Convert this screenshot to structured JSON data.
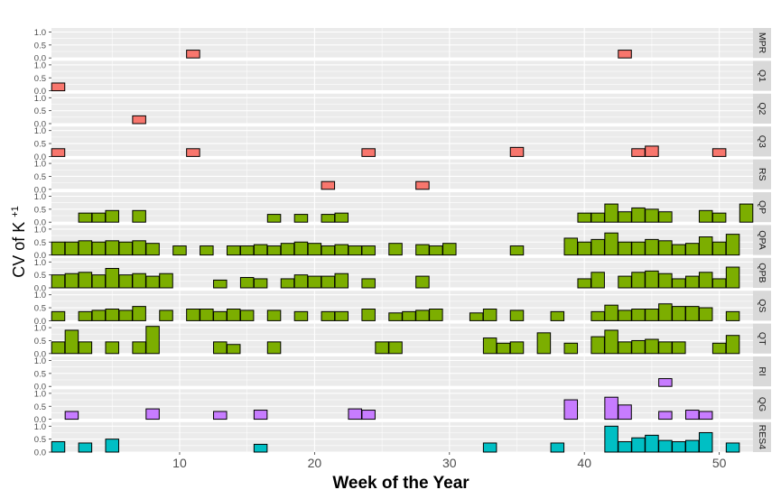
{
  "chart_data": {
    "type": "bar",
    "xlabel": "Week of the Year",
    "ylabel_main": "CV of K",
    "ylabel_sup": "+1",
    "xlim": [
      0.5,
      52.5
    ],
    "x_ticks": [
      10,
      20,
      30,
      40,
      50
    ],
    "ylim": [
      0,
      1
    ],
    "y_ticks": [
      "0.0",
      "0.5",
      "1.0"
    ],
    "grid": true,
    "panel_background": "#ebebeb",
    "grid_color": "#ffffff",
    "strip_background": "#d9d9d9",
    "bar_outline": "#000000",
    "panels": [
      {
        "label": "MPR",
        "fill": "#f8766d",
        "points": [
          [
            11,
            0.3
          ],
          [
            43,
            0.3
          ]
        ]
      },
      {
        "label": "Q1",
        "fill": "#f8766d",
        "points": [
          [
            1,
            0.3
          ]
        ]
      },
      {
        "label": "Q2",
        "fill": "#f8766d",
        "points": [
          [
            7,
            0.3
          ]
        ]
      },
      {
        "label": "Q3",
        "fill": "#f8766d",
        "points": [
          [
            1,
            0.3
          ],
          [
            11,
            0.3
          ],
          [
            24,
            0.3
          ],
          [
            35,
            0.35
          ],
          [
            44,
            0.3
          ],
          [
            45,
            0.4
          ],
          [
            50,
            0.3
          ]
        ]
      },
      {
        "label": "RS",
        "fill": "#f8766d",
        "points": [
          [
            21,
            0.3
          ],
          [
            28,
            0.3
          ]
        ]
      },
      {
        "label": "QP",
        "fill": "#7cae00",
        "points": [
          [
            3,
            0.35
          ],
          [
            4,
            0.35
          ],
          [
            5,
            0.45
          ],
          [
            7,
            0.45
          ],
          [
            17,
            0.3
          ],
          [
            19,
            0.3
          ],
          [
            21,
            0.3
          ],
          [
            22,
            0.35
          ],
          [
            40,
            0.35
          ],
          [
            41,
            0.35
          ],
          [
            42,
            0.7
          ],
          [
            43,
            0.4
          ],
          [
            44,
            0.55
          ],
          [
            45,
            0.5
          ],
          [
            46,
            0.4
          ],
          [
            49,
            0.45
          ],
          [
            50,
            0.35
          ],
          [
            52,
            0.7
          ]
        ]
      },
      {
        "label": "QPA",
        "fill": "#7cae00",
        "points": [
          [
            1,
            0.5
          ],
          [
            2,
            0.5
          ],
          [
            3,
            0.55
          ],
          [
            4,
            0.5
          ],
          [
            5,
            0.55
          ],
          [
            6,
            0.5
          ],
          [
            7,
            0.55
          ],
          [
            8,
            0.45
          ],
          [
            10,
            0.35
          ],
          [
            12,
            0.35
          ],
          [
            14,
            0.35
          ],
          [
            15,
            0.35
          ],
          [
            16,
            0.4
          ],
          [
            17,
            0.35
          ],
          [
            18,
            0.45
          ],
          [
            19,
            0.5
          ],
          [
            20,
            0.45
          ],
          [
            21,
            0.35
          ],
          [
            22,
            0.4
          ],
          [
            23,
            0.35
          ],
          [
            24,
            0.35
          ],
          [
            26,
            0.45
          ],
          [
            28,
            0.4
          ],
          [
            29,
            0.35
          ],
          [
            30,
            0.45
          ],
          [
            35,
            0.35
          ],
          [
            39,
            0.65
          ],
          [
            40,
            0.5
          ],
          [
            41,
            0.6
          ],
          [
            42,
            0.85
          ],
          [
            43,
            0.5
          ],
          [
            44,
            0.5
          ],
          [
            45,
            0.6
          ],
          [
            46,
            0.55
          ],
          [
            47,
            0.4
          ],
          [
            48,
            0.45
          ],
          [
            49,
            0.7
          ],
          [
            50,
            0.5
          ],
          [
            51,
            0.8
          ]
        ]
      },
      {
        "label": "QPB",
        "fill": "#7cae00",
        "points": [
          [
            1,
            0.5
          ],
          [
            2,
            0.55
          ],
          [
            3,
            0.6
          ],
          [
            4,
            0.5
          ],
          [
            5,
            0.75
          ],
          [
            6,
            0.5
          ],
          [
            7,
            0.55
          ],
          [
            8,
            0.45
          ],
          [
            9,
            0.55
          ],
          [
            13,
            0.3
          ],
          [
            15,
            0.4
          ],
          [
            16,
            0.35
          ],
          [
            18,
            0.35
          ],
          [
            19,
            0.5
          ],
          [
            20,
            0.45
          ],
          [
            21,
            0.45
          ],
          [
            22,
            0.55
          ],
          [
            24,
            0.35
          ],
          [
            28,
            0.45
          ],
          [
            40,
            0.35
          ],
          [
            41,
            0.6
          ],
          [
            43,
            0.45
          ],
          [
            44,
            0.6
          ],
          [
            45,
            0.65
          ],
          [
            46,
            0.55
          ],
          [
            47,
            0.35
          ],
          [
            48,
            0.45
          ],
          [
            49,
            0.6
          ],
          [
            50,
            0.35
          ],
          [
            51,
            0.8
          ]
        ]
      },
      {
        "label": "QS",
        "fill": "#7cae00",
        "points": [
          [
            1,
            0.35
          ],
          [
            3,
            0.35
          ],
          [
            4,
            0.4
          ],
          [
            5,
            0.45
          ],
          [
            6,
            0.4
          ],
          [
            7,
            0.55
          ],
          [
            9,
            0.4
          ],
          [
            11,
            0.45
          ],
          [
            12,
            0.45
          ],
          [
            13,
            0.35
          ],
          [
            14,
            0.45
          ],
          [
            15,
            0.4
          ],
          [
            17,
            0.4
          ],
          [
            19,
            0.35
          ],
          [
            21,
            0.35
          ],
          [
            22,
            0.35
          ],
          [
            24,
            0.45
          ],
          [
            26,
            0.3
          ],
          [
            27,
            0.35
          ],
          [
            28,
            0.4
          ],
          [
            29,
            0.45
          ],
          [
            32,
            0.3
          ],
          [
            33,
            0.45
          ],
          [
            35,
            0.4
          ],
          [
            38,
            0.35
          ],
          [
            41,
            0.35
          ],
          [
            42,
            0.6
          ],
          [
            43,
            0.4
          ],
          [
            44,
            0.45
          ],
          [
            45,
            0.45
          ],
          [
            46,
            0.65
          ],
          [
            47,
            0.55
          ],
          [
            48,
            0.55
          ],
          [
            49,
            0.5
          ],
          [
            51,
            0.35
          ]
        ]
      },
      {
        "label": "QT",
        "fill": "#7cae00",
        "points": [
          [
            1,
            0.45
          ],
          [
            2,
            0.9
          ],
          [
            3,
            0.45
          ],
          [
            5,
            0.45
          ],
          [
            7,
            0.45
          ],
          [
            8,
            1.05
          ],
          [
            13,
            0.45
          ],
          [
            14,
            0.35
          ],
          [
            17,
            0.45
          ],
          [
            25,
            0.45
          ],
          [
            26,
            0.45
          ],
          [
            33,
            0.6
          ],
          [
            34,
            0.4
          ],
          [
            35,
            0.45
          ],
          [
            37,
            0.8
          ],
          [
            39,
            0.4
          ],
          [
            41,
            0.65
          ],
          [
            42,
            0.9
          ],
          [
            43,
            0.45
          ],
          [
            44,
            0.5
          ],
          [
            45,
            0.55
          ],
          [
            46,
            0.45
          ],
          [
            47,
            0.45
          ],
          [
            50,
            0.4
          ],
          [
            51,
            0.7
          ]
        ]
      },
      {
        "label": "RI",
        "fill": "#c77cff",
        "points": [
          [
            46,
            0.3
          ]
        ]
      },
      {
        "label": "QG",
        "fill": "#c77cff",
        "points": [
          [
            2,
            0.3
          ],
          [
            8,
            0.4
          ],
          [
            13,
            0.3
          ],
          [
            16,
            0.35
          ],
          [
            23,
            0.4
          ],
          [
            24,
            0.35
          ],
          [
            39,
            0.75
          ],
          [
            42,
            0.85
          ],
          [
            43,
            0.55
          ],
          [
            46,
            0.3
          ],
          [
            48,
            0.35
          ],
          [
            49,
            0.3
          ]
        ]
      },
      {
        "label": "RES4",
        "fill": "#00bfc4",
        "points": [
          [
            1,
            0.4
          ],
          [
            3,
            0.35
          ],
          [
            5,
            0.5
          ],
          [
            16,
            0.3
          ],
          [
            33,
            0.35
          ],
          [
            38,
            0.35
          ],
          [
            42,
            1.0
          ],
          [
            43,
            0.4
          ],
          [
            44,
            0.55
          ],
          [
            45,
            0.65
          ],
          [
            46,
            0.45
          ],
          [
            47,
            0.4
          ],
          [
            48,
            0.45
          ],
          [
            49,
            0.75
          ],
          [
            51,
            0.35
          ]
        ]
      }
    ]
  }
}
